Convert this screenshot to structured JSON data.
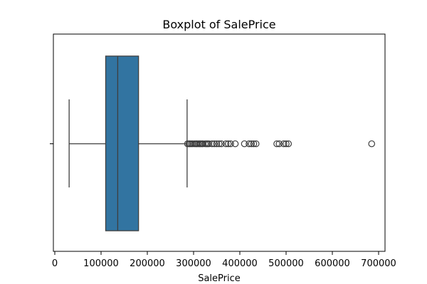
{
  "chart_data": {
    "type": "box",
    "title": "Boxplot of SalePrice",
    "xlabel": "SalePrice",
    "ylabel": "",
    "orientation": "horizontal",
    "xlim": [
      0,
      720000
    ],
    "xticks": [
      0,
      100000,
      200000,
      300000,
      400000,
      500000,
      600000,
      700000
    ],
    "xtick_labels": [
      "0",
      "100000",
      "200000",
      "300000",
      "400000",
      "500000",
      "600000",
      "700000"
    ],
    "box": {
      "whisker_low": 31000,
      "q1": 110000,
      "median": 136000,
      "q3": 181000,
      "whisker_high": 286000
    },
    "outliers": [
      287000,
      290000,
      292000,
      295000,
      298000,
      302000,
      305000,
      307000,
      310000,
      313000,
      315000,
      318000,
      320000,
      325000,
      328000,
      330000,
      333000,
      340000,
      345000,
      350000,
      355000,
      360000,
      370000,
      375000,
      380000,
      390000,
      410000,
      420000,
      425000,
      430000,
      435000,
      480000,
      485000,
      495000,
      500000,
      505000,
      685000
    ],
    "box_color": "#3274a1",
    "edge_color": "#3f3f3f",
    "grid": false
  }
}
